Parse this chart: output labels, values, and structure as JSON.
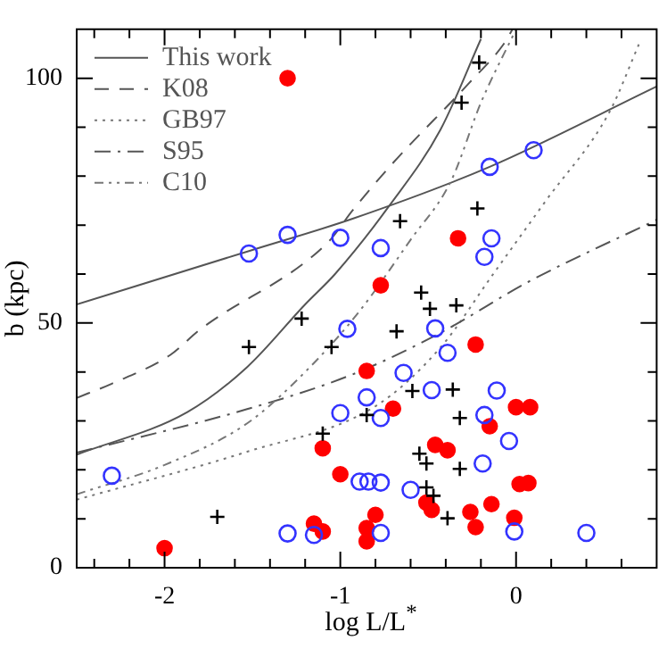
{
  "chart_data": {
    "type": "scatter",
    "xlabel": "log L/L$^{*}$",
    "ylabel": "b (kpc)",
    "xlim": [
      -2.5,
      0.8
    ],
    "ylim": [
      0,
      110
    ],
    "xticks": [
      {
        "value": -2.4,
        "label": null
      },
      {
        "value": -2.2,
        "label": null
      },
      -2,
      {
        "value": -1.8,
        "label": null
      },
      {
        "value": -1.6,
        "label": null
      },
      {
        "value": -1.4,
        "label": null
      },
      {
        "value": -1.2,
        "label": null
      },
      -1,
      {
        "value": -0.8,
        "label": null
      },
      {
        "value": -0.6,
        "label": null
      },
      {
        "value": -0.4,
        "label": null
      },
      {
        "value": -0.2,
        "label": null
      },
      0,
      {
        "value": 0.2,
        "label": null
      },
      {
        "value": 0.4,
        "label": null
      },
      {
        "value": 0.6,
        "label": null
      }
    ],
    "yticks": [
      0,
      {
        "value": 10,
        "label": null
      },
      {
        "value": 20,
        "label": null
      },
      {
        "value": 30,
        "label": null
      },
      {
        "value": 40,
        "label": null
      },
      50,
      {
        "value": 60,
        "label": null
      },
      {
        "value": 70,
        "label": null
      },
      {
        "value": 80,
        "label": null
      },
      {
        "value": 90,
        "label": null
      },
      100
    ],
    "grid": false,
    "legend": "top left",
    "series": [
      {
        "name": "This work",
        "type": "line",
        "line_style": "solid",
        "marker": "none",
        "color": "#555555",
        "x": [
          -2.5,
          -1.52,
          -0.93,
          -0.15,
          0.8
        ],
        "values": [
          53.8,
          64.7,
          71.3,
          81.9,
          98.3
        ]
      },
      {
        "type": "line",
        "line_style": "solid",
        "marker": "none",
        "color": "#555555",
        "x": [
          -2.5,
          -1.87,
          -1.53,
          -1.2,
          -1.03,
          -0.72,
          -0.43,
          -0.2
        ],
        "values": [
          23.1,
          31.8,
          41,
          53.8,
          60,
          74,
          89.5,
          108
        ]
      },
      {
        "name": "K08",
        "type": "line",
        "line_style": "dashed",
        "marker": "none",
        "color": "#555555",
        "x": [
          -2.5,
          -2.3,
          -1.97,
          -1.8,
          -1.07,
          -0.93,
          -0.7,
          -0.27,
          -0.07,
          -0.02
        ],
        "values": [
          34.7,
          37.6,
          43.4,
          48.6,
          66.5,
          73,
          82.7,
          98.9,
          107,
          110
        ]
      },
      {
        "name": "GB97",
        "type": "line",
        "line_style": "dotted",
        "marker": "none",
        "color": "#777777",
        "x": [
          -2.5,
          -1.53,
          -0.8,
          -0.43,
          -0.13,
          0.17,
          0.53,
          0.7
        ],
        "values": [
          13.9,
          23.7,
          33,
          45,
          60,
          75,
          93,
          107
        ]
      },
      {
        "name": "S95",
        "type": "line",
        "line_style": "dashdot",
        "marker": "none",
        "color": "#555555",
        "x": [
          -2.5,
          -1.53,
          -0.93,
          -0.43,
          0.07,
          0.8
        ],
        "values": [
          23.5,
          32.4,
          39.5,
          48,
          58.4,
          71.1
        ]
      },
      {
        "name": "C10",
        "type": "line",
        "line_style": "dashdotdot",
        "marker": "none",
        "color": "#777777",
        "x": [
          -2.5,
          -2,
          -1.53,
          -1.2,
          -0.9,
          -0.6,
          -0.37,
          -0.2,
          0
        ],
        "values": [
          15,
          21,
          29.5,
          40,
          52,
          67,
          79,
          95,
          110
        ]
      },
      {
        "type": "scatter",
        "marker": "circle",
        "color": "#ff0000",
        "x": [
          -1.3,
          -0.33,
          -0.77,
          -1.1,
          -1.0,
          -1.15,
          -1.1,
          -2.0,
          -0.23,
          -0.85,
          -0.7,
          0.0,
          0.08,
          -0.15,
          -0.46,
          -0.39,
          0.02,
          0.07,
          -0.51,
          -0.48,
          -0.14,
          -0.26,
          -0.8,
          -0.85,
          -0.23,
          -0.01,
          -0.85
        ],
        "values": [
          100,
          67.3,
          57.7,
          24.4,
          19.1,
          9.0,
          7.4,
          4.0,
          45.6,
          40.2,
          32.5,
          32.8,
          32.8,
          28.9,
          25.1,
          24.0,
          17.1,
          17.3,
          13.3,
          11.8,
          13.0,
          11.4,
          10.8,
          8.1,
          8.3,
          10.2,
          5.4
        ]
      },
      {
        "type": "scatter",
        "marker": "open_circle",
        "color": "#3333ff",
        "x": [
          -1.52,
          -1.3,
          -1.0,
          -0.96,
          -0.15,
          0.1,
          -0.77,
          -0.14,
          -0.18,
          -0.46,
          -2.3,
          -1.0,
          -1.3,
          -1.15,
          -0.39,
          -0.64,
          -0.85,
          -0.48,
          -0.11,
          -0.77,
          -0.18,
          -0.04,
          -0.19,
          -0.89,
          -0.84,
          -0.77,
          -0.6,
          -0.77,
          -0.01,
          0.4
        ],
        "values": [
          64.2,
          68,
          67.4,
          48.8,
          81.9,
          85.3,
          65.3,
          67.3,
          63.5,
          48.9,
          18.8,
          31.6,
          7,
          6.7,
          43.9,
          39.8,
          34.8,
          36.3,
          36.2,
          30.6,
          31.2,
          25.9,
          21.3,
          17.6,
          17.6,
          17.4,
          15.9,
          7.1,
          7.4,
          7.1
        ]
      },
      {
        "type": "scatter",
        "marker": "cross",
        "color": "#000000",
        "x": [
          -1.22,
          -0.21,
          -0.31,
          -0.22,
          -0.66,
          -0.54,
          -0.49,
          -0.34,
          -0.68,
          -1.52,
          -1.05,
          -1.1,
          -1.7,
          -0.59,
          -0.36,
          -0.85,
          -0.32,
          -0.55,
          -0.51,
          -0.32,
          -0.51,
          -0.47,
          -0.39
        ],
        "values": [
          50.9,
          103.2,
          95,
          73.4,
          70.8,
          56.2,
          52.9,
          53.6,
          48.3,
          45.1,
          45.1,
          27.4,
          10.4,
          36.1,
          36.4,
          31.2,
          30.6,
          23.3,
          21.3,
          20.2,
          16.4,
          14.7,
          10.1
        ]
      }
    ]
  }
}
